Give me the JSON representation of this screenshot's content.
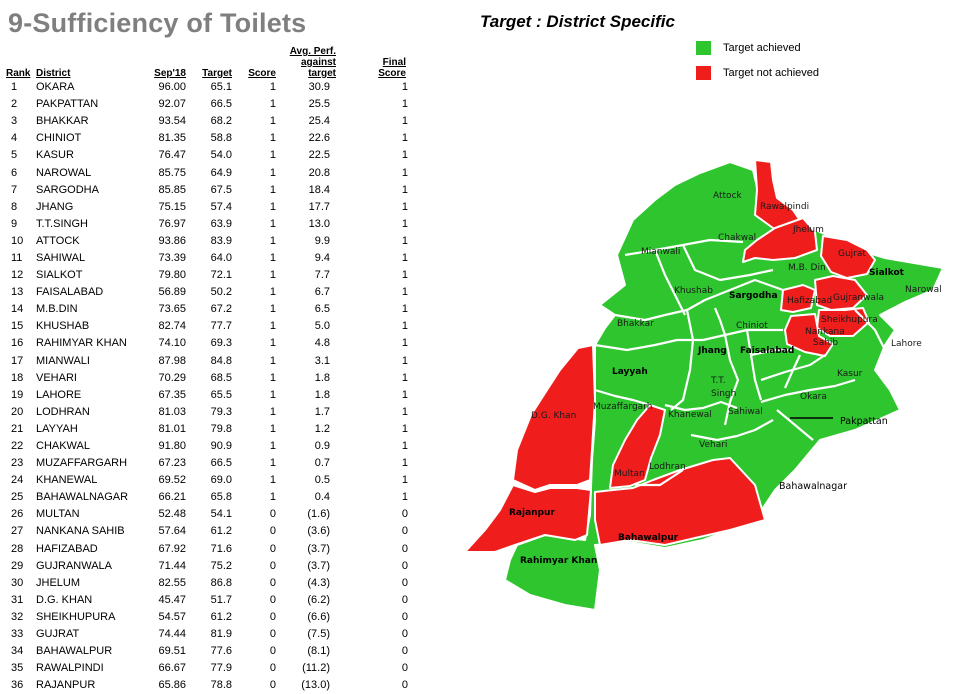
{
  "title": "9-Sufficiency of Toilets",
  "subtitle": "Target : District Specific",
  "colors": {
    "achieved": "#2ec52e",
    "not_achieved": "#f01d1d",
    "title": "#7f7f7f"
  },
  "legend": {
    "achieved": "Target achieved",
    "not_achieved": "Target not achieved"
  },
  "table": {
    "headers": {
      "rank": "Rank",
      "district": "District",
      "sep": "Sep'18",
      "target": "Target",
      "score": "Score",
      "avg_line1": "Avg. Perf.",
      "avg_line2": "against target",
      "final_line1": "Final",
      "final_line2": "Score"
    },
    "rows": [
      {
        "rank": "1",
        "district": "OKARA",
        "sep": "96.00",
        "target": "65.1",
        "score": "1",
        "avg": "30.9",
        "final": "1"
      },
      {
        "rank": "2",
        "district": "PAKPATTAN",
        "sep": "92.07",
        "target": "66.5",
        "score": "1",
        "avg": "25.5",
        "final": "1"
      },
      {
        "rank": "3",
        "district": "BHAKKAR",
        "sep": "93.54",
        "target": "68.2",
        "score": "1",
        "avg": "25.4",
        "final": "1"
      },
      {
        "rank": "4",
        "district": "CHINIOT",
        "sep": "81.35",
        "target": "58.8",
        "score": "1",
        "avg": "22.6",
        "final": "1"
      },
      {
        "rank": "5",
        "district": "KASUR",
        "sep": "76.47",
        "target": "54.0",
        "score": "1",
        "avg": "22.5",
        "final": "1"
      },
      {
        "rank": "6",
        "district": "NAROWAL",
        "sep": "85.75",
        "target": "64.9",
        "score": "1",
        "avg": "20.8",
        "final": "1"
      },
      {
        "rank": "7",
        "district": "SARGODHA",
        "sep": "85.85",
        "target": "67.5",
        "score": "1",
        "avg": "18.4",
        "final": "1"
      },
      {
        "rank": "8",
        "district": "JHANG",
        "sep": "75.15",
        "target": "57.4",
        "score": "1",
        "avg": "17.7",
        "final": "1"
      },
      {
        "rank": "9",
        "district": "T.T.SINGH",
        "sep": "76.97",
        "target": "63.9",
        "score": "1",
        "avg": "13.0",
        "final": "1"
      },
      {
        "rank": "10",
        "district": "ATTOCK",
        "sep": "93.86",
        "target": "83.9",
        "score": "1",
        "avg": "9.9",
        "final": "1"
      },
      {
        "rank": "11",
        "district": "SAHIWAL",
        "sep": "73.39",
        "target": "64.0",
        "score": "1",
        "avg": "9.4",
        "final": "1"
      },
      {
        "rank": "12",
        "district": "SIALKOT",
        "sep": "79.80",
        "target": "72.1",
        "score": "1",
        "avg": "7.7",
        "final": "1"
      },
      {
        "rank": "13",
        "district": "FAISALABAD",
        "sep": "56.89",
        "target": "50.2",
        "score": "1",
        "avg": "6.7",
        "final": "1"
      },
      {
        "rank": "14",
        "district": "M.B.DIN",
        "sep": "73.65",
        "target": "67.2",
        "score": "1",
        "avg": "6.5",
        "final": "1"
      },
      {
        "rank": "15",
        "district": "KHUSHAB",
        "sep": "82.74",
        "target": "77.7",
        "score": "1",
        "avg": "5.0",
        "final": "1"
      },
      {
        "rank": "16",
        "district": "RAHIMYAR KHAN",
        "sep": "74.10",
        "target": "69.3",
        "score": "1",
        "avg": "4.8",
        "final": "1"
      },
      {
        "rank": "17",
        "district": "MIANWALI",
        "sep": "87.98",
        "target": "84.8",
        "score": "1",
        "avg": "3.1",
        "final": "1"
      },
      {
        "rank": "18",
        "district": "VEHARI",
        "sep": "70.29",
        "target": "68.5",
        "score": "1",
        "avg": "1.8",
        "final": "1"
      },
      {
        "rank": "19",
        "district": "LAHORE",
        "sep": "67.35",
        "target": "65.5",
        "score": "1",
        "avg": "1.8",
        "final": "1"
      },
      {
        "rank": "20",
        "district": "LODHRAN",
        "sep": "81.03",
        "target": "79.3",
        "score": "1",
        "avg": "1.7",
        "final": "1"
      },
      {
        "rank": "21",
        "district": "LAYYAH",
        "sep": "81.01",
        "target": "79.8",
        "score": "1",
        "avg": "1.2",
        "final": "1"
      },
      {
        "rank": "22",
        "district": "CHAKWAL",
        "sep": "91.80",
        "target": "90.9",
        "score": "1",
        "avg": "0.9",
        "final": "1"
      },
      {
        "rank": "23",
        "district": "MUZAFFARGARH",
        "sep": "67.23",
        "target": "66.5",
        "score": "1",
        "avg": "0.7",
        "final": "1"
      },
      {
        "rank": "24",
        "district": "KHANEWAL",
        "sep": "69.52",
        "target": "69.0",
        "score": "1",
        "avg": "0.5",
        "final": "1"
      },
      {
        "rank": "25",
        "district": "BAHAWALNAGAR",
        "sep": "66.21",
        "target": "65.8",
        "score": "1",
        "avg": "0.4",
        "final": "1"
      },
      {
        "rank": "26",
        "district": "MULTAN",
        "sep": "52.48",
        "target": "54.1",
        "score": "0",
        "avg": "(1.6)",
        "final": "0"
      },
      {
        "rank": "27",
        "district": "NANKANA SAHIB",
        "sep": "57.64",
        "target": "61.2",
        "score": "0",
        "avg": "(3.6)",
        "final": "0"
      },
      {
        "rank": "28",
        "district": "HAFIZABAD",
        "sep": "67.92",
        "target": "71.6",
        "score": "0",
        "avg": "(3.7)",
        "final": "0"
      },
      {
        "rank": "29",
        "district": "GUJRANWALA",
        "sep": "71.44",
        "target": "75.2",
        "score": "0",
        "avg": "(3.7)",
        "final": "0"
      },
      {
        "rank": "30",
        "district": "JHELUM",
        "sep": "82.55",
        "target": "86.8",
        "score": "0",
        "avg": "(4.3)",
        "final": "0"
      },
      {
        "rank": "31",
        "district": "D.G. KHAN",
        "sep": "45.47",
        "target": "51.7",
        "score": "0",
        "avg": "(6.2)",
        "final": "0"
      },
      {
        "rank": "32",
        "district": "SHEIKHUPURA",
        "sep": "54.57",
        "target": "61.2",
        "score": "0",
        "avg": "(6.6)",
        "final": "0"
      },
      {
        "rank": "33",
        "district": "GUJRAT",
        "sep": "74.44",
        "target": "81.9",
        "score": "0",
        "avg": "(7.5)",
        "final": "0"
      },
      {
        "rank": "34",
        "district": "BAHAWALPUR",
        "sep": "69.51",
        "target": "77.6",
        "score": "0",
        "avg": "(8.1)",
        "final": "0"
      },
      {
        "rank": "35",
        "district": "RAWALPINDI",
        "sep": "66.67",
        "target": "77.9",
        "score": "0",
        "avg": "(11.2)",
        "final": "0"
      },
      {
        "rank": "36",
        "district": "RAJANPUR",
        "sep": "65.86",
        "target": "78.8",
        "score": "0",
        "avg": "(13.0)",
        "final": "0"
      }
    ]
  },
  "map": {
    "labels": {
      "attock": "Attock",
      "rawalpindi": "Rawalpindi",
      "jhelum": "Jhelum",
      "chakwal": "Chakwal",
      "mianwali": "Mianwali",
      "gujrat": "Gujrat",
      "mbdin": "M.B. Din",
      "sialkot": "Sialkot",
      "narowal": "Narowal",
      "khushab": "Khushab",
      "sargodha": "Sargodha",
      "hafizabad": "Hafizabad",
      "gujranwala": "Gujranwala",
      "sheikhupura": "Sheikhupura",
      "bhakkar": "Bhakkar",
      "chiniot": "Chiniot",
      "nankana": "Nankana",
      "sahib": "Sahib",
      "lahore": "Lahore",
      "jhang": "Jhang",
      "faisalabad": "Faisalabad",
      "layyah": "Layyah",
      "tt1": "T.T.",
      "tt2": "Singh",
      "kasur": "Kasur",
      "okara": "Okara",
      "dgkhan": "D.G. Khan",
      "muzaffargarh": "Muzaffargarh",
      "khanewal": "Khanewal",
      "sahiwal": "Sahiwal",
      "pakpattan": "Pakpattan",
      "vehari": "Vehari",
      "lodhran": "Lodhran",
      "multan": "Multan",
      "bahawalnagar": "Bahawalnagar",
      "rajanpur": "Rajanpur",
      "bahawalpur": "Bahawalpur",
      "rahimyarkhan": "Rahimyar Khan"
    }
  }
}
